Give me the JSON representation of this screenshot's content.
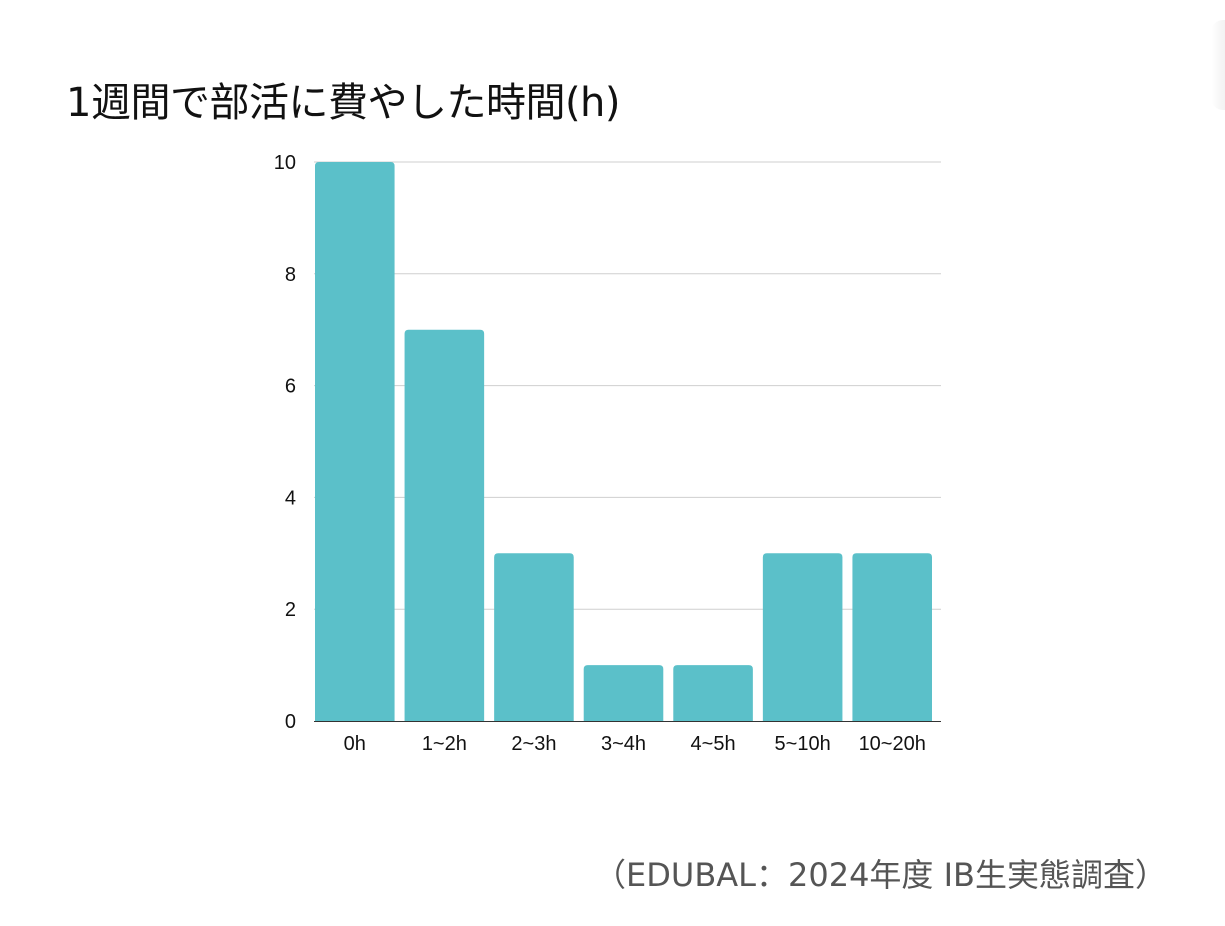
{
  "title": "1週間で部活に費やした時間(h)",
  "source": "（EDUBAL：2024年度 IB生実態調査）",
  "colors": {
    "bar": "#5bc0c9",
    "grid": "#cfcfcf",
    "text": "#111111"
  },
  "chart_data": {
    "type": "bar",
    "title": "1週間で部活に費やした時間(h)",
    "categories": [
      "0h",
      "1~2h",
      "2~3h",
      "3~4h",
      "4~5h",
      "5~10h",
      "10~20h"
    ],
    "values": [
      10,
      7,
      3,
      1,
      1,
      3,
      3
    ],
    "xlabel": "",
    "ylabel": "",
    "ylim": [
      0,
      10
    ],
    "yticks": [
      0,
      2,
      4,
      6,
      8,
      10
    ],
    "grid": true,
    "legend": "none"
  }
}
